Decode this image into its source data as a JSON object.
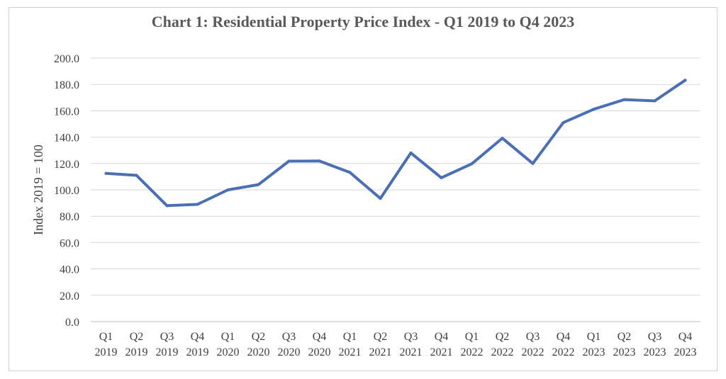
{
  "chart_data": {
    "type": "line",
    "title": "Chart 1: Residential Property Price Index - Q1 2019 to Q4 2023",
    "xlabel": "",
    "ylabel": "Index 2019 = 100",
    "ylim": [
      0,
      200
    ],
    "yticks": [
      "0.0",
      "20.0",
      "40.0",
      "60.0",
      "80.0",
      "100.0",
      "120.0",
      "140.0",
      "160.0",
      "180.0",
      "200.0"
    ],
    "grid": true,
    "legend": "none",
    "line_color": "#4a6fb5",
    "categories": [
      [
        "Q1",
        "2019"
      ],
      [
        "Q2",
        "2019"
      ],
      [
        "Q3",
        "2019"
      ],
      [
        "Q4",
        "2019"
      ],
      [
        "Q1",
        "2020"
      ],
      [
        "Q2",
        "2020"
      ],
      [
        "Q3",
        "2020"
      ],
      [
        "Q4",
        "2020"
      ],
      [
        "Q1",
        "2021"
      ],
      [
        "Q2",
        "2021"
      ],
      [
        "Q3",
        "2021"
      ],
      [
        "Q4",
        "2021"
      ],
      [
        "Q1",
        "2022"
      ],
      [
        "Q2",
        "2022"
      ],
      [
        "Q3",
        "2022"
      ],
      [
        "Q4",
        "2022"
      ],
      [
        "Q1",
        "2023"
      ],
      [
        "Q2",
        "2023"
      ],
      [
        "Q3",
        "2023"
      ],
      [
        "Q4",
        "2023"
      ]
    ],
    "values": [
      112.5,
      111.0,
      88.0,
      89.0,
      100.0,
      104.0,
      121.8,
      121.9,
      113.2,
      93.5,
      128.0,
      109.2,
      119.8,
      139.2,
      120.0,
      151.0,
      161.2,
      168.5,
      167.5,
      183.2
    ]
  }
}
